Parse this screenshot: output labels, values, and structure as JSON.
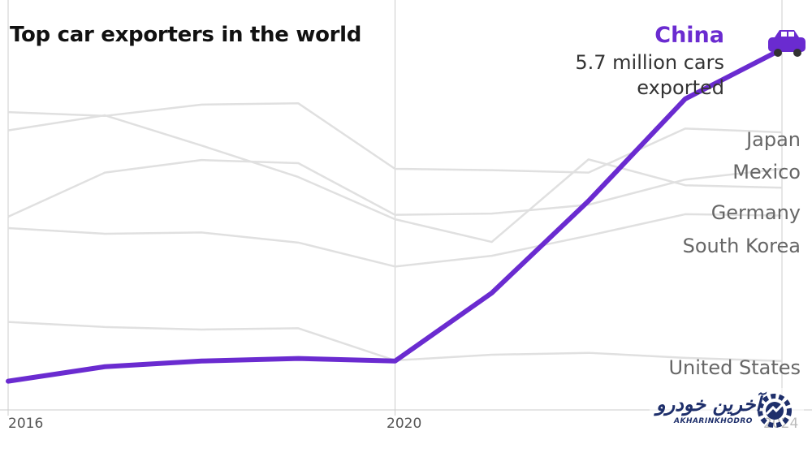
{
  "chart_data": {
    "type": "line",
    "title": "Top car exporters in the world",
    "x": [
      2016,
      2017,
      2018,
      2019,
      2020,
      2021,
      2022,
      2023,
      2024
    ],
    "xlim": [
      2016,
      2024
    ],
    "ylim": [
      0,
      5.9
    ],
    "xticks": [
      "2016",
      "2020",
      "2024"
    ],
    "grid": false,
    "legend": "direct labels at right",
    "highlight": {
      "name": "China",
      "note": "5.7 million cars exported",
      "color": "#6a2bd0",
      "icon": "car-icon",
      "values": [
        0.43,
        0.66,
        0.75,
        0.79,
        0.75,
        1.83,
        3.29,
        4.91,
        5.7
      ]
    },
    "series": [
      {
        "name": "Japan",
        "values": [
          4.7,
          4.64,
          4.82,
          4.84,
          3.8,
          3.78,
          3.74,
          4.44,
          4.38
        ]
      },
      {
        "name": "Mexico",
        "values": [
          3.04,
          3.74,
          3.94,
          3.89,
          3.07,
          3.09,
          3.23,
          3.63,
          3.8
        ]
      },
      {
        "name": "Germany",
        "values": [
          4.41,
          4.65,
          4.17,
          3.67,
          3.0,
          2.64,
          3.95,
          3.54,
          3.5
        ]
      },
      {
        "name": "South Korea",
        "values": [
          2.86,
          2.77,
          2.79,
          2.63,
          2.25,
          2.42,
          2.74,
          3.08,
          3.06
        ]
      },
      {
        "name": "United States",
        "values": [
          1.37,
          1.29,
          1.25,
          1.27,
          0.76,
          0.85,
          0.88,
          0.8,
          0.75
        ]
      }
    ],
    "colors": {
      "background": "#ffffff",
      "other_lines": "#e0e0e0",
      "axis": "#cccccc"
    }
  },
  "watermark": {
    "fa": "آخرین خودرو",
    "en": "AKHARINKHODRO"
  }
}
